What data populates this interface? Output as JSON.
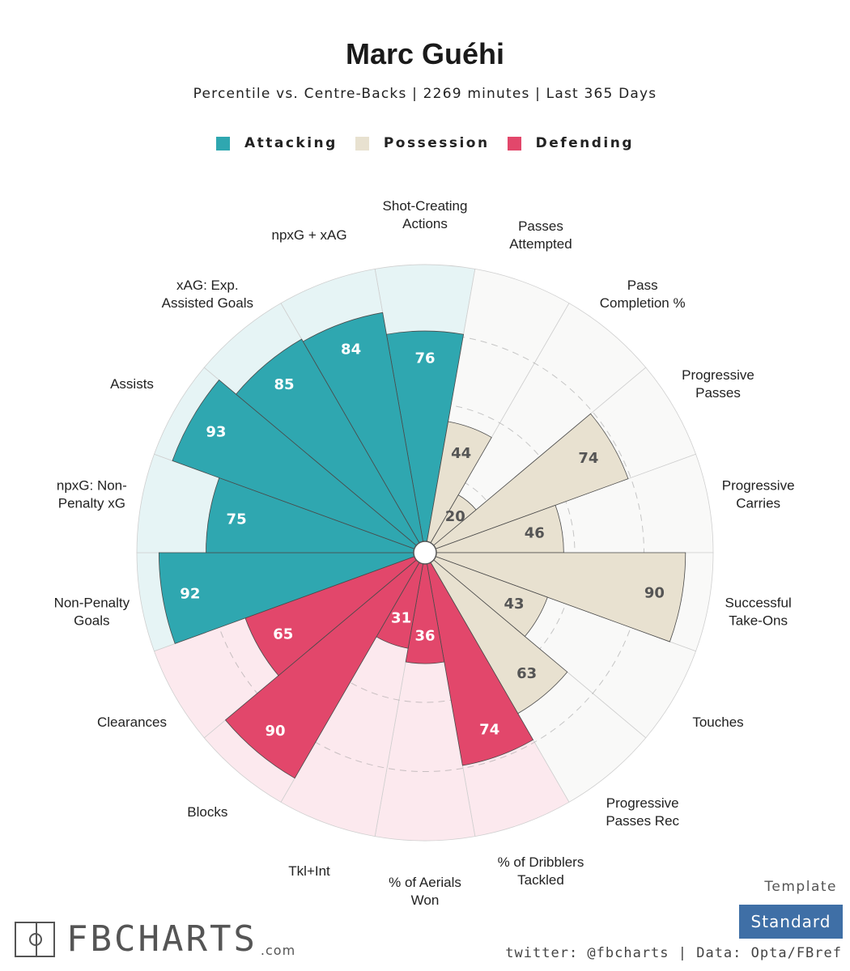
{
  "title": "Marc Guéhi",
  "subtitle": "Percentile vs. Centre-Backs | 2269 minutes | Last 365 Days",
  "legend": [
    {
      "label": "Attacking",
      "color": "#2fa7b0"
    },
    {
      "label": "Possession",
      "color": "#e8e1d0"
    },
    {
      "label": "Defending",
      "color": "#e2476b"
    }
  ],
  "colors": {
    "Attacking": {
      "fill": "#2fa7b0",
      "bg": "#e6f4f5",
      "text": "#ffffff"
    },
    "Possession": {
      "fill": "#e8e1d0",
      "bg": "#f9f9f8",
      "text": "#555555"
    },
    "Defending": {
      "fill": "#e2476b",
      "bg": "#fce9ee",
      "text": "#ffffff"
    }
  },
  "chart_data": {
    "type": "radar-bar",
    "title": "Marc Guéhi",
    "subtitle": "Percentile vs. Centre-Backs | 2269 minutes | Last 365 Days",
    "rlim": [
      0,
      100
    ],
    "gridlines": [
      25,
      50,
      75
    ],
    "categories": [
      {
        "label": [
          "Shot-Creating",
          "Actions"
        ],
        "value": 76,
        "group": "Attacking"
      },
      {
        "label": [
          "Passes",
          "Attempted"
        ],
        "value": 44,
        "group": "Possession"
      },
      {
        "label": [
          "Pass",
          "Completion %"
        ],
        "value": 20,
        "group": "Possession"
      },
      {
        "label": [
          "Progressive",
          "Passes"
        ],
        "value": 74,
        "group": "Possession"
      },
      {
        "label": [
          "Progressive",
          "Carries"
        ],
        "value": 46,
        "group": "Possession"
      },
      {
        "label": [
          "Successful",
          "Take-Ons"
        ],
        "value": 90,
        "group": "Possession"
      },
      {
        "label": [
          "Touches"
        ],
        "value": 43,
        "group": "Possession"
      },
      {
        "label": [
          "Progressive",
          "Passes Rec"
        ],
        "value": 63,
        "group": "Possession"
      },
      {
        "label": [
          "% of Dribblers",
          "Tackled"
        ],
        "value": 74,
        "group": "Defending"
      },
      {
        "label": [
          "% of Aerials",
          "Won"
        ],
        "value": 36,
        "group": "Defending"
      },
      {
        "label": [
          "Tkl+Int"
        ],
        "value": 31,
        "group": "Defending"
      },
      {
        "label": [
          "Blocks"
        ],
        "value": 90,
        "group": "Defending"
      },
      {
        "label": [
          "Clearances"
        ],
        "value": 65,
        "group": "Defending"
      },
      {
        "label": [
          "Non-Penalty",
          "Goals"
        ],
        "value": 92,
        "group": "Attacking"
      },
      {
        "label": [
          "npxG: Non-",
          "Penalty xG"
        ],
        "value": 75,
        "group": "Attacking"
      },
      {
        "label": [
          "Assists"
        ],
        "value": 93,
        "group": "Attacking"
      },
      {
        "label": [
          "xAG: Exp.",
          "Assisted Goals"
        ],
        "value": 85,
        "group": "Attacking"
      },
      {
        "label": [
          "npxG + xAG"
        ],
        "value": 84,
        "group": "Attacking"
      }
    ]
  },
  "footer": {
    "logo_text": "FBCHARTS",
    "logo_suffix": ".com",
    "template_label": "Template",
    "template_value": "Standard",
    "credits": "twitter: @fbcharts | Data: Opta/FBref"
  }
}
